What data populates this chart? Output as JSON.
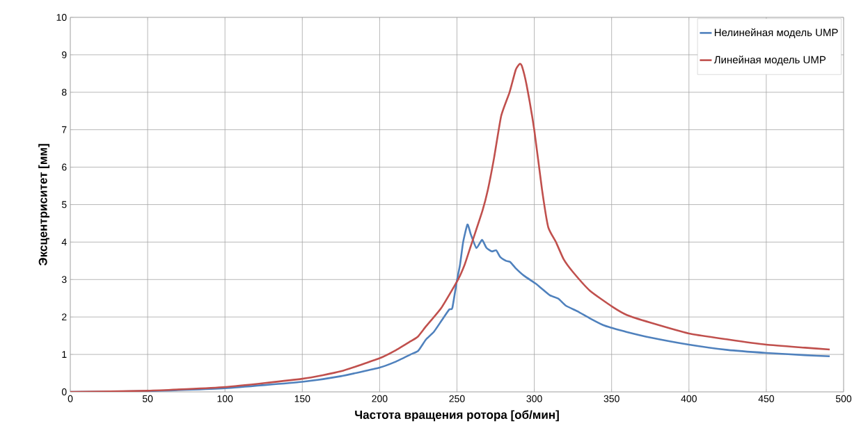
{
  "chart_data": {
    "type": "line",
    "xlabel": "Частота вращения ротора [об/мин]",
    "ylabel": "Эксцентриситет [мм]",
    "xlim": [
      0,
      500
    ],
    "ylim": [
      0,
      10
    ],
    "xticks": [
      0,
      50,
      100,
      150,
      200,
      250,
      300,
      350,
      400,
      450,
      500
    ],
    "yticks": [
      0,
      1,
      2,
      3,
      4,
      5,
      6,
      7,
      8,
      9,
      10
    ],
    "grid": true,
    "legend": "top right",
    "line_style": "solid",
    "marker": "none",
    "series": [
      {
        "name": "Нелинейная модель UMP",
        "color": "#4f81bd",
        "x": [
          0,
          50,
          100,
          150,
          175,
          200,
          210,
          220,
          225,
          230,
          235,
          240,
          245,
          247,
          250,
          252,
          254,
          256.8,
          259,
          262.6,
          266.2,
          269,
          272.6,
          275.4,
          278,
          281.7,
          284.4,
          288,
          293.4,
          301,
          305,
          310,
          315.5,
          320.5,
          328,
          335.7,
          344.7,
          350,
          359.6,
          375,
          400,
          425,
          450,
          475,
          491
        ],
        "values": [
          0,
          0.02,
          0.1,
          0.27,
          0.42,
          0.65,
          0.8,
          1.0,
          1.1,
          1.4,
          1.6,
          1.9,
          2.2,
          2.24,
          2.98,
          3.4,
          4.0,
          4.47,
          4.2,
          3.84,
          4.06,
          3.85,
          3.75,
          3.78,
          3.6,
          3.5,
          3.47,
          3.3,
          3.1,
          2.89,
          2.75,
          2.58,
          2.49,
          2.3,
          2.15,
          1.97,
          1.78,
          1.71,
          1.6,
          1.45,
          1.26,
          1.12,
          1.04,
          0.98,
          0.95
        ]
      },
      {
        "name": "Линейная модель UMP",
        "color": "#c0504d",
        "x": [
          0,
          50,
          100,
          150,
          175,
          200,
          210,
          220,
          224.6,
          230,
          240,
          250.7,
          255,
          259,
          266.5,
          270,
          274,
          278.6,
          284,
          288,
          290.6,
          292,
          295,
          300,
          305,
          309,
          314,
          319,
          325,
          336,
          350.6,
          360,
          375,
          400,
          425,
          450,
          475,
          491
        ],
        "values": [
          0,
          0.03,
          0.13,
          0.35,
          0.55,
          0.9,
          1.1,
          1.35,
          1.47,
          1.75,
          2.25,
          3.0,
          3.4,
          3.9,
          4.84,
          5.4,
          6.25,
          7.37,
          8.0,
          8.6,
          8.76,
          8.7,
          8.2,
          6.99,
          5.4,
          4.4,
          4.0,
          3.54,
          3.2,
          2.7,
          2.27,
          2.05,
          1.85,
          1.56,
          1.4,
          1.26,
          1.18,
          1.13
        ]
      }
    ]
  }
}
